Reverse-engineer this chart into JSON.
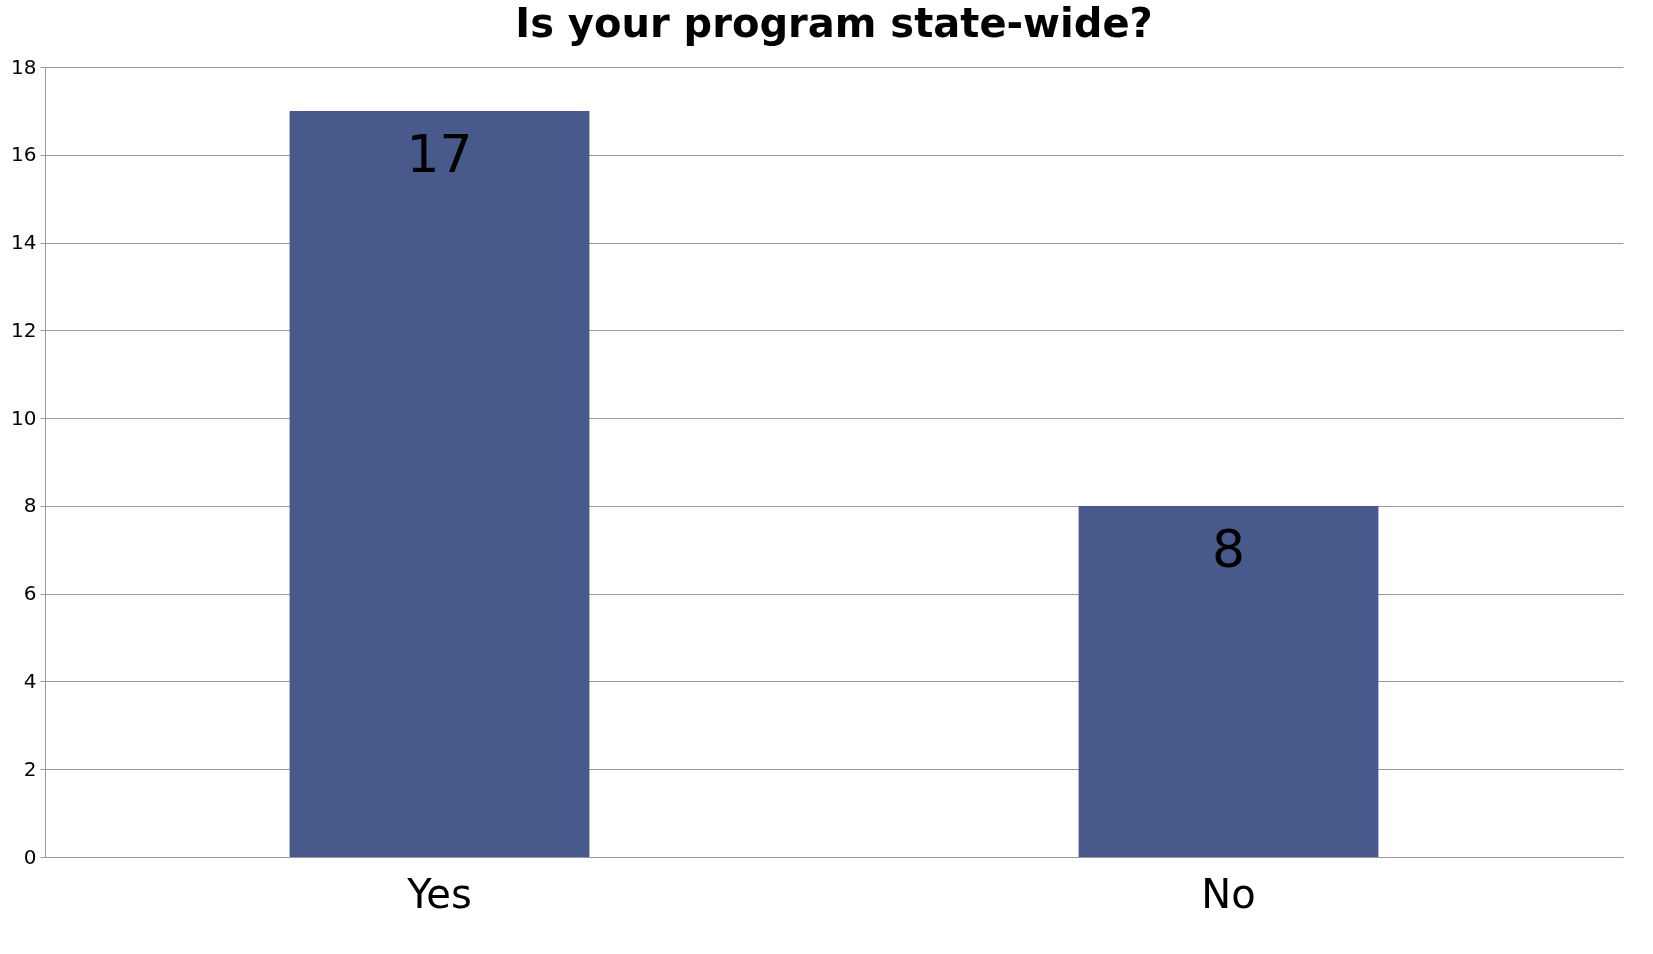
{
  "chart_data": {
    "type": "bar",
    "title": "Is your program state-wide?",
    "categories": [
      "Yes",
      "No"
    ],
    "values": [
      17,
      8
    ],
    "color": "#48598b",
    "ylim": [
      0,
      18
    ],
    "yticks": [
      0,
      2,
      4,
      6,
      8,
      10,
      12,
      14,
      16,
      18
    ],
    "grid": "y",
    "data_labels": true
  }
}
